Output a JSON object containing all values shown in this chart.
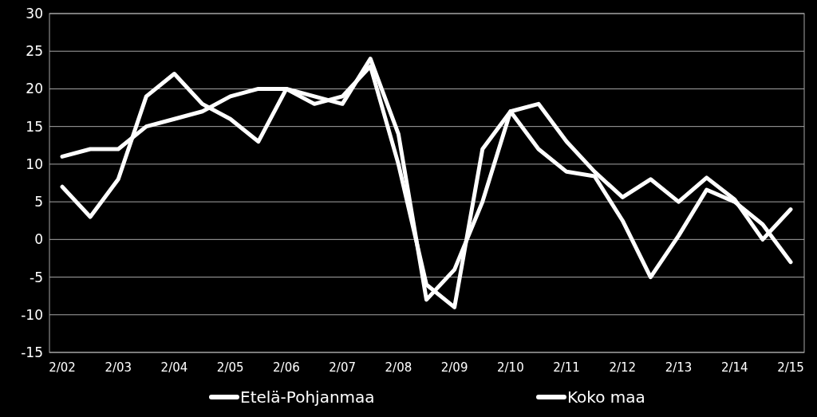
{
  "chart_data": {
    "type": "line",
    "categories": [
      "2/02",
      null,
      "2/03",
      null,
      "2/04",
      null,
      "2/05",
      null,
      "2/06",
      null,
      "2/07",
      null,
      "2/08",
      null,
      "2/09",
      null,
      "2/10",
      null,
      "2/11",
      null,
      "2/12",
      null,
      "2/13",
      null,
      "2/14",
      null,
      "2/15"
    ],
    "series": [
      {
        "name": "Etelä-Pohjanmaa",
        "color": "#ffffff",
        "values": [
          7,
          3,
          8,
          19,
          22,
          18,
          16,
          13,
          20,
          19,
          18,
          24,
          14,
          -8,
          -4,
          5,
          17,
          12,
          9,
          8.4,
          2.5,
          -5,
          0.5,
          6.6,
          5,
          2,
          -3
        ]
      },
      {
        "name": "Koko maa",
        "color": "#ffffff",
        "values": [
          11,
          12,
          12,
          15,
          16,
          17,
          19,
          20,
          20,
          18,
          19,
          23,
          10,
          -6,
          -9,
          12,
          17,
          18,
          13,
          9,
          5.6,
          8,
          5,
          8.2,
          5.3,
          0,
          4
        ]
      }
    ],
    "ylim": [
      -15,
      30
    ],
    "yticks": [
      -15,
      -10,
      -5,
      0,
      5,
      10,
      15,
      20,
      25,
      30
    ],
    "grid": "y",
    "legend": "bottom",
    "marker": "none",
    "line_style": "solid"
  }
}
